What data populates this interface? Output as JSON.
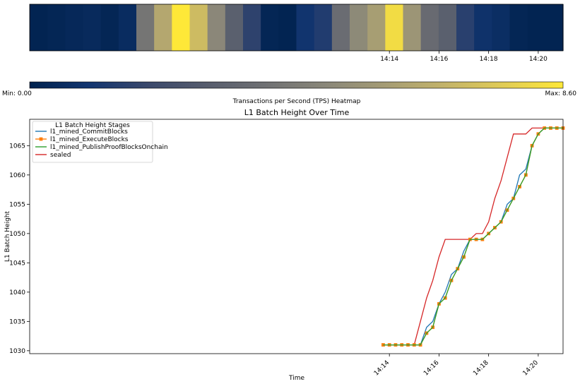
{
  "heatmap": {
    "tps": [
      0.1,
      0.2,
      0.3,
      0.4,
      0.2,
      0.5,
      4.0,
      6.2,
      8.6,
      7.0,
      4.8,
      3.0,
      1.6,
      0.2,
      0.1,
      0.9,
      1.3,
      3.6,
      4.9,
      5.8,
      8.2,
      5.4,
      3.5,
      3.0,
      1.5,
      0.8,
      0.6,
      0.2,
      0.1,
      0.1
    ],
    "x_ticks": [
      "14:14",
      "14:16",
      "14:18",
      "14:20"
    ]
  },
  "colorbar": {
    "min_label": "Min: 0.00",
    "max_label": "Max: 8.60",
    "title": "Transactions per Second (TPS) Heatmap",
    "min": 0.0,
    "max": 8.6
  },
  "colors": {
    "cmap": [
      "#00224e",
      "#123570",
      "#3b496c",
      "#575d6d",
      "#707173",
      "#8a8779",
      "#a59c74",
      "#c3b369",
      "#e1cc55",
      "#fee838"
    ],
    "series": [
      "#1f77b4",
      "#ff7f0e",
      "#2ca02c",
      "#d62728"
    ]
  },
  "chart_data": {
    "type": "line",
    "title": "L1 Batch Height Over Time",
    "xlabel": "Time",
    "ylabel": "L1 Batch Height",
    "xlim": [
      "13:59:30",
      "14:21:00"
    ],
    "ylim": [
      1029.5,
      1069.5
    ],
    "x_ticks": [
      "14:14",
      "14:16",
      "14:18",
      "14:20"
    ],
    "y_ticks": [
      1030,
      1035,
      1040,
      1045,
      1050,
      1055,
      1060,
      1065
    ],
    "legend": {
      "title": "L1 Batch Height Stages",
      "position": "upper-left"
    },
    "x": [
      "14:13:45",
      "14:14:00",
      "14:14:15",
      "14:14:30",
      "14:14:45",
      "14:15:00",
      "14:15:15",
      "14:15:30",
      "14:15:45",
      "14:16:00",
      "14:16:15",
      "14:16:30",
      "14:16:45",
      "14:17:00",
      "14:17:15",
      "14:17:30",
      "14:17:45",
      "14:18:00",
      "14:18:15",
      "14:18:30",
      "14:18:45",
      "14:19:00",
      "14:19:15",
      "14:19:30",
      "14:19:45",
      "14:20:00",
      "14:20:15",
      "14:20:30",
      "14:20:45",
      "14:21:00"
    ],
    "series": [
      {
        "name": "l1_mined_CommitBlocks",
        "values": [
          1031,
          1031,
          1031,
          1031,
          1031,
          1031,
          1031,
          1034,
          1035,
          1038,
          1040,
          1043,
          1044,
          1047,
          1049,
          1049,
          1049,
          1050,
          1051,
          1052,
          1055,
          1056,
          1060,
          1061,
          1065,
          1067,
          1068,
          1068,
          1068,
          1068
        ]
      },
      {
        "name": "l1_mined_ExecuteBlocks",
        "values": [
          1031,
          1031,
          1031,
          1031,
          1031,
          1031,
          1031,
          1033,
          1034,
          1038,
          1039,
          1042,
          1044,
          1046,
          1049,
          1049,
          1049,
          1050,
          1051,
          1052,
          1054,
          1056,
          1058,
          1060,
          1065,
          1067,
          1068,
          1068,
          1068,
          1068
        ]
      },
      {
        "name": "l1_mined_PublishProofBlocksOnchain",
        "values": [
          1031,
          1031,
          1031,
          1031,
          1031,
          1031,
          1031,
          1033,
          1034,
          1038,
          1039,
          1042,
          1044,
          1046,
          1049,
          1049,
          1049,
          1050,
          1051,
          1052,
          1054,
          1056,
          1058,
          1060,
          1065,
          1067,
          1068,
          1068,
          1068,
          1068
        ]
      },
      {
        "name": "sealed",
        "values": [
          1031,
          1031,
          1031,
          1031,
          1031,
          1031,
          1035,
          1039,
          1042,
          1046,
          1049,
          1049,
          1049,
          1049,
          1049,
          1050,
          1050,
          1052,
          1056,
          1059,
          1063,
          1067,
          1067,
          1067,
          1068,
          1068,
          1068,
          1068,
          1068,
          1068
        ]
      }
    ]
  }
}
